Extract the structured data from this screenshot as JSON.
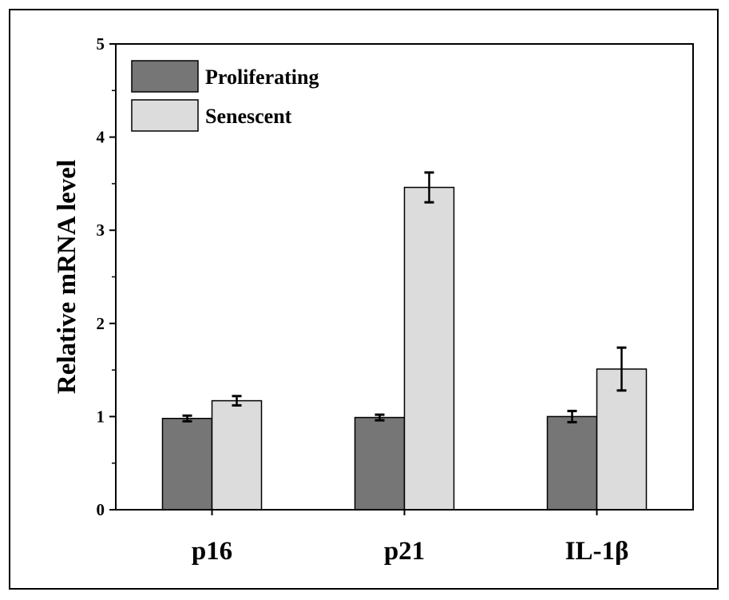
{
  "chart_data": {
    "type": "bar",
    "title": "",
    "xlabel": "",
    "ylabel": "Relative mRNA level",
    "ylim": [
      0,
      5
    ],
    "yticks": [
      "0",
      "1",
      "2",
      "3",
      "4",
      "5"
    ],
    "categories": [
      "p16",
      "p21",
      "IL-1β"
    ],
    "legend_position": "top-left",
    "grid": false,
    "series": [
      {
        "name": "Proliferating",
        "color": "#767676",
        "values": [
          0.98,
          0.99,
          1.0
        ],
        "errors": [
          0.03,
          0.03,
          0.06
        ]
      },
      {
        "name": "Senescent",
        "color": "#dcdcdc",
        "values": [
          1.17,
          3.46,
          1.51
        ],
        "errors": [
          0.05,
          0.16,
          0.23
        ]
      }
    ]
  }
}
